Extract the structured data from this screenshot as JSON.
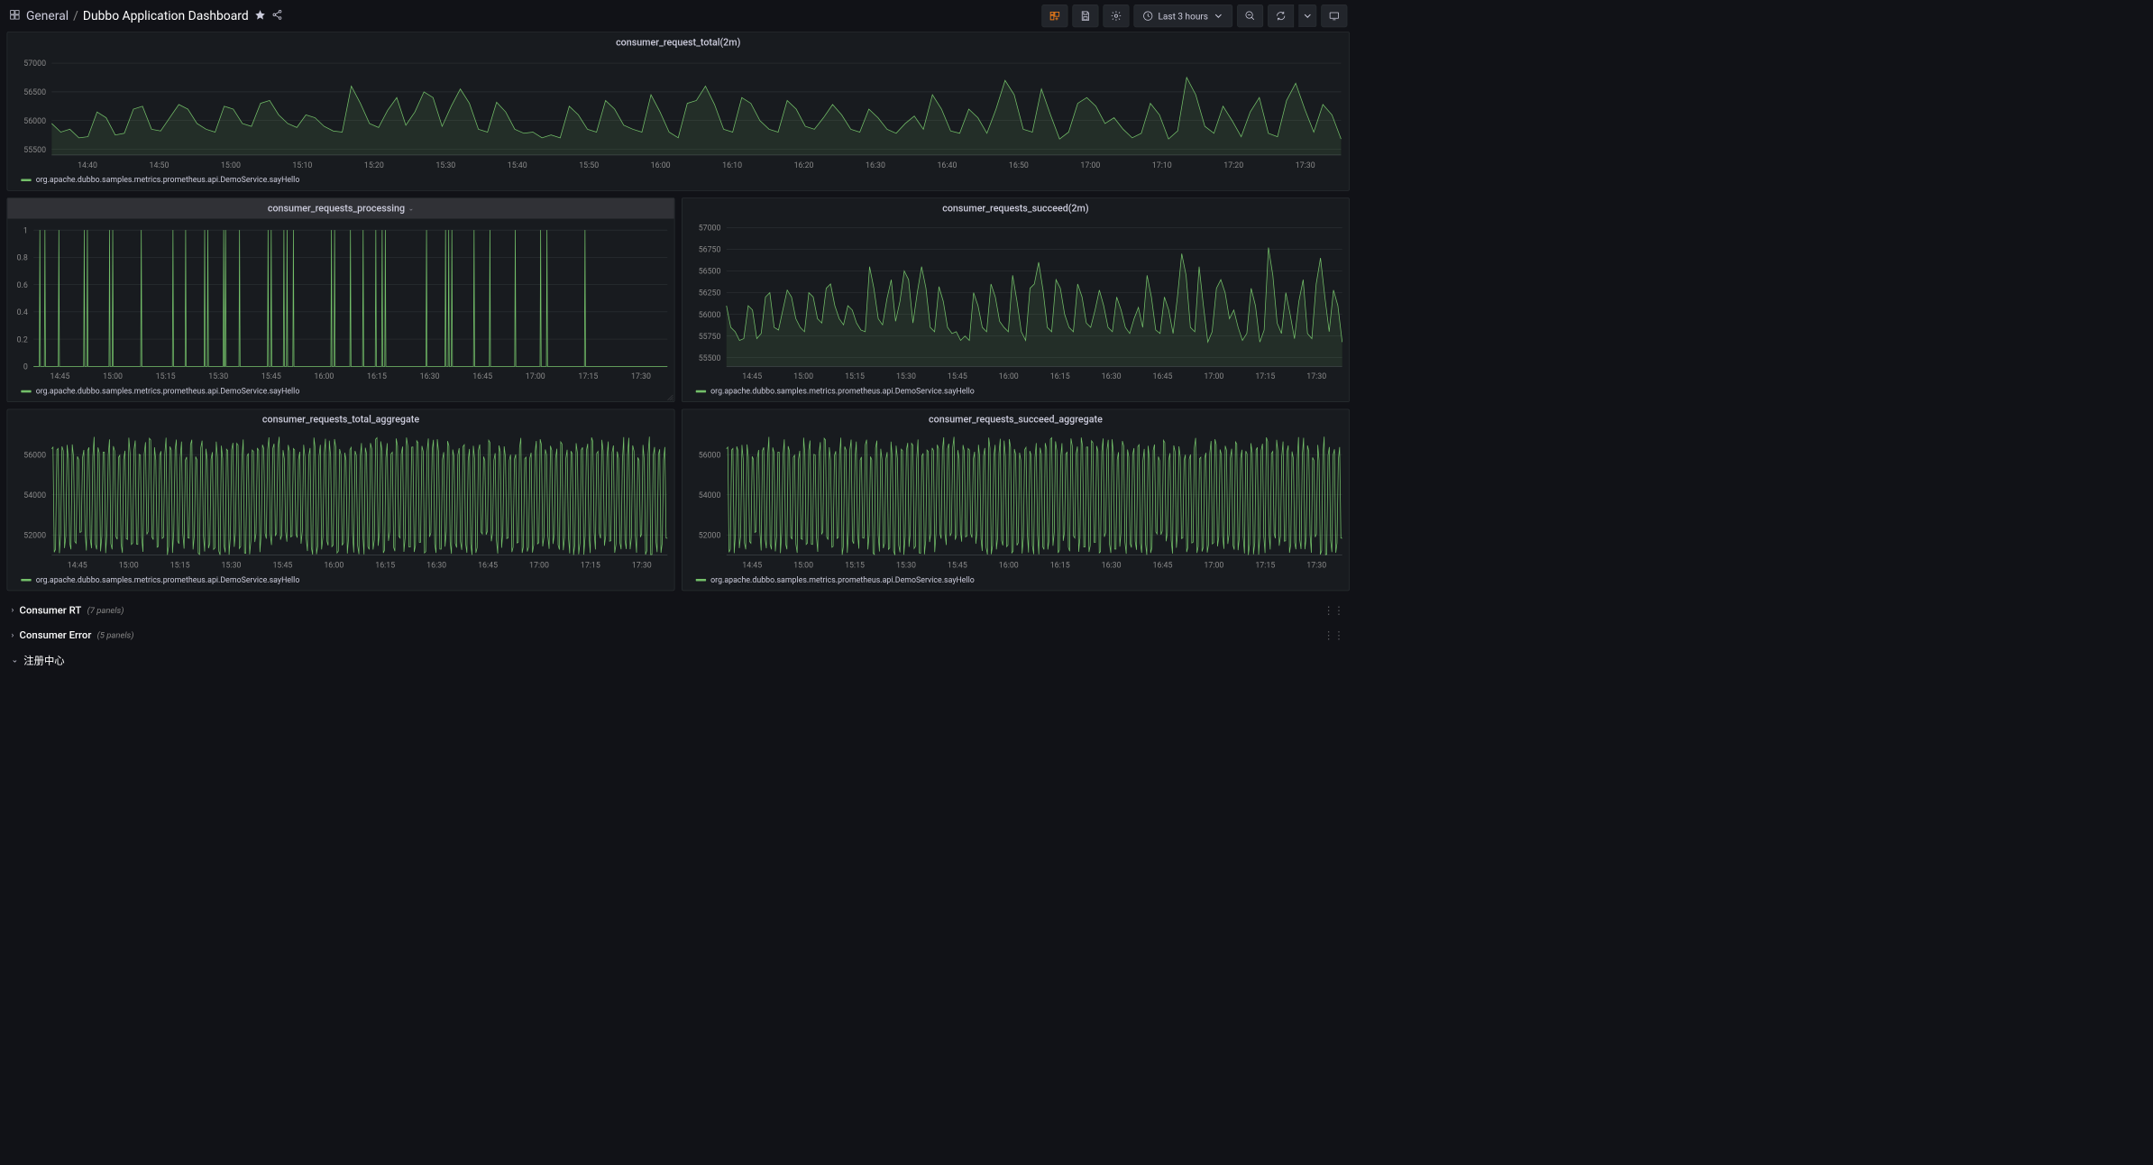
{
  "toolbar": {
    "folder": "General",
    "title": "Dubbo Application Dashboard",
    "time_range": "Last 3 hours"
  },
  "colors": {
    "series": "#73bf69",
    "grid": "#2c3235",
    "axis_text": "#888888",
    "panel_bg": "#181b1f",
    "page_bg": "#111217"
  },
  "legend_label": "org.apache.dubbo.samples.metrics.prometheus.api.DemoService.sayHello",
  "panels": {
    "p1": {
      "title": "consumer_request_total(2m)",
      "y_ticks": [
        55500,
        56000,
        56500,
        57000
      ],
      "ylim": [
        55400,
        57100
      ],
      "x_ticks": [
        "14:40",
        "14:50",
        "15:00",
        "15:10",
        "15:20",
        "15:30",
        "15:40",
        "15:50",
        "16:00",
        "16:10",
        "16:20",
        "16:30",
        "16:40",
        "16:50",
        "17:00",
        "17:10",
        "17:20",
        "17:30"
      ],
      "data": [
        55950,
        55800,
        55850,
        55700,
        55720,
        56150,
        56050,
        55750,
        55780,
        56200,
        56250,
        55850,
        55820,
        56050,
        56280,
        56200,
        55950,
        55850,
        55800,
        56250,
        56200,
        55950,
        55900,
        56300,
        56350,
        56100,
        55950,
        55880,
        56100,
        56050,
        55900,
        55820,
        55800,
        56600,
        56300,
        55950,
        55880,
        56180,
        56400,
        55920,
        56150,
        56500,
        56400,
        55900,
        56250,
        56550,
        56300,
        55850,
        55800,
        56320,
        56150,
        55850,
        55780,
        55800,
        55700,
        55750,
        55700,
        56250,
        56100,
        55850,
        55800,
        56350,
        56200,
        55920,
        55850,
        55800,
        56450,
        56150,
        55800,
        55700,
        56300,
        56350,
        56600,
        56280,
        55850,
        55800,
        56400,
        56300,
        56000,
        55850,
        55800,
        56350,
        56200,
        55900,
        55850,
        56050,
        56280,
        56100,
        55850,
        55800,
        56200,
        56050,
        55850,
        55780,
        55950,
        56080,
        55850,
        56450,
        56200,
        55820,
        55780,
        56200,
        56050,
        55780,
        56200,
        56700,
        56450,
        55850,
        55800,
        56550,
        56100,
        55680,
        55800,
        56300,
        56400,
        56250,
        55950,
        56050,
        55850,
        55700,
        55780,
        56300,
        56100,
        55680,
        55820,
        56750,
        56450,
        55900,
        55780,
        56250,
        56000,
        55720,
        56150,
        56400,
        55780,
        55720,
        56350,
        56650,
        56200,
        55800,
        56280,
        56100,
        55680
      ]
    },
    "p2": {
      "title": "consumer_requests_processing",
      "selected": true,
      "y_ticks": [
        0,
        0.2,
        0.4,
        0.6,
        0.8,
        1
      ],
      "ylim": [
        0,
        1.05
      ],
      "x_ticks": [
        "14:45",
        "15:00",
        "15:15",
        "15:30",
        "15:45",
        "16:00",
        "16:15",
        "16:30",
        "16:45",
        "17:00",
        "17:15",
        "17:30"
      ],
      "spikes_at": [
        0.01,
        0.018,
        0.04,
        0.08,
        0.085,
        0.12,
        0.125,
        0.17,
        0.22,
        0.24,
        0.27,
        0.275,
        0.3,
        0.303,
        0.325,
        0.37,
        0.375,
        0.395,
        0.4,
        0.41,
        0.47,
        0.475,
        0.5,
        0.52,
        0.54,
        0.55,
        0.555,
        0.62,
        0.65,
        0.655,
        0.66,
        0.695,
        0.72,
        0.76,
        0.8,
        0.81,
        0.87
      ]
    },
    "p3": {
      "title": "consumer_requests_succeed(2m)",
      "y_ticks": [
        55500,
        55750,
        56000,
        56250,
        56500,
        56750,
        57000
      ],
      "ylim": [
        55400,
        57050
      ],
      "x_ticks": [
        "14:45",
        "15:00",
        "15:15",
        "15:30",
        "15:45",
        "16:00",
        "16:15",
        "16:30",
        "16:45",
        "17:00",
        "17:15",
        "17:30"
      ],
      "data": [
        56100,
        55850,
        55800,
        55700,
        55720,
        56100,
        56050,
        55720,
        55780,
        56200,
        56250,
        55850,
        55820,
        56050,
        56280,
        56200,
        55950,
        55850,
        55800,
        56250,
        56200,
        55950,
        55900,
        56300,
        56350,
        56100,
        55950,
        55880,
        56100,
        56050,
        55900,
        55820,
        55800,
        56550,
        56300,
        55950,
        55880,
        56180,
        56400,
        55920,
        56150,
        56500,
        56400,
        55900,
        56250,
        56550,
        56300,
        55850,
        55800,
        56320,
        56150,
        55850,
        55780,
        55800,
        55700,
        55750,
        55700,
        56250,
        56100,
        55850,
        55800,
        56350,
        56200,
        55920,
        55850,
        55800,
        56450,
        56150,
        55800,
        55700,
        56300,
        56350,
        56600,
        56280,
        55850,
        55800,
        56400,
        56300,
        56000,
        55850,
        55800,
        56350,
        56200,
        55900,
        55850,
        56050,
        56280,
        56100,
        55850,
        55800,
        56200,
        56050,
        55850,
        55780,
        55950,
        56080,
        55850,
        56450,
        56200,
        55820,
        55780,
        56200,
        56050,
        55780,
        56200,
        56700,
        56450,
        55850,
        55800,
        56550,
        56100,
        55680,
        55800,
        56300,
        56400,
        56250,
        55950,
        56050,
        55850,
        55700,
        55780,
        56300,
        56100,
        55680,
        55820,
        56770,
        56450,
        55900,
        55780,
        56250,
        56000,
        55720,
        56150,
        56400,
        55780,
        55720,
        56350,
        56650,
        56200,
        55800,
        56280,
        56100,
        55680
      ]
    },
    "p4": {
      "title": "consumer_requests_total_aggregate",
      "y_ticks": [
        52000,
        54000,
        56000
      ],
      "ylim": [
        51000,
        57000
      ],
      "x_ticks": [
        "14:45",
        "15:00",
        "15:15",
        "15:30",
        "15:45",
        "16:00",
        "16:15",
        "16:30",
        "16:45",
        "17:00",
        "17:15",
        "17:30"
      ],
      "osc": {
        "base_lo": 51600,
        "base_hi": 56300,
        "jitter": 600,
        "cycles": 120
      }
    },
    "p5": {
      "title": "consumer_requests_succeed_aggregate",
      "y_ticks": [
        52000,
        54000,
        56000
      ],
      "ylim": [
        51000,
        57000
      ],
      "x_ticks": [
        "14:45",
        "15:00",
        "15:15",
        "15:30",
        "15:45",
        "16:00",
        "16:15",
        "16:30",
        "16:45",
        "17:00",
        "17:15",
        "17:30"
      ],
      "osc": {
        "base_lo": 51600,
        "base_hi": 56300,
        "jitter": 600,
        "cycles": 120
      }
    }
  },
  "rows": [
    {
      "title": "Consumer RT",
      "count": "(7 panels)",
      "open": false
    },
    {
      "title": "Consumer Error",
      "count": "(5 panels)",
      "open": false
    },
    {
      "title": "注册中心",
      "count": "",
      "open": true
    }
  ]
}
